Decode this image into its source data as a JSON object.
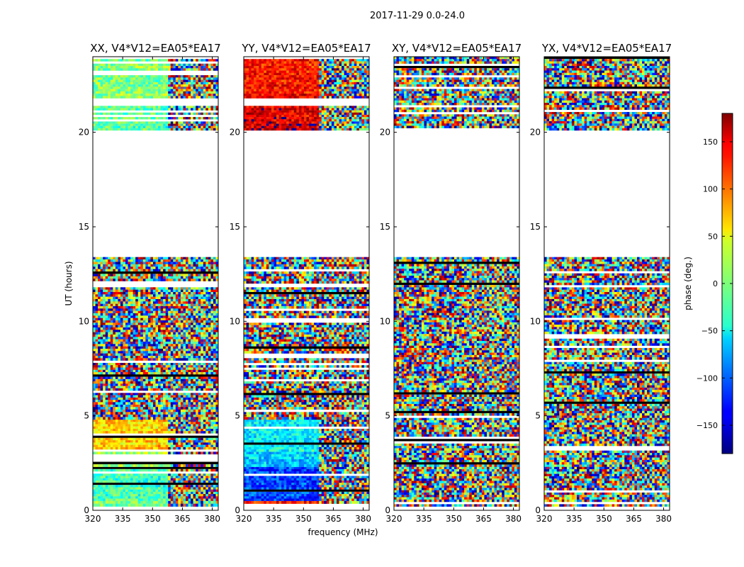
{
  "figure": {
    "suptitle": "2017-11-29 0.0-24.0",
    "xlabel": "frequency (MHz)",
    "ylabel": "UT (hours)"
  },
  "colorbar": {
    "label": "phase (deg.)",
    "range": [
      -180,
      180
    ],
    "ticks": [
      150,
      100,
      50,
      0,
      -50,
      -100,
      -150
    ],
    "tick_labels": [
      "150",
      "100",
      "50",
      "0",
      "−50",
      "−100",
      "−150"
    ],
    "colormap": "jet"
  },
  "chart_data": [
    {
      "type": "heatmap",
      "title": "XX, V4*V12=EA05*EA17",
      "xlim": [
        320,
        383
      ],
      "ylim": [
        0,
        24
      ],
      "xticks": [
        320,
        335,
        350,
        365,
        380
      ],
      "xtick_labels": [
        "320",
        "335",
        "350",
        "365",
        "380"
      ],
      "yticks": [
        0,
        5,
        10,
        15,
        20
      ],
      "ytick_labels": [
        "0",
        "5",
        "10",
        "15",
        "20"
      ],
      "show_ylabel": true,
      "data_segments": [
        {
          "t": [
            0.2,
            0.5
          ],
          "phase": 0
        },
        {
          "t": [
            0.5,
            2.3
          ],
          "phase": -20
        },
        {
          "t": [
            2.3,
            3.1
          ],
          "phase": 10
        },
        {
          "t": [
            3.1,
            4.8
          ],
          "phase": 60
        },
        {
          "t": [
            4.8,
            5.6
          ],
          "phase": "mixed"
        },
        {
          "t": [
            5.6,
            7.8
          ],
          "phase": "mixed"
        },
        {
          "t": [
            7.8,
            11.8
          ],
          "phase": "mixed"
        },
        {
          "t": [
            12.0,
            13.4
          ],
          "phase": "mixed"
        },
        {
          "t": [
            20.1,
            21.4
          ],
          "phase": -10
        },
        {
          "t": [
            21.8,
            24.0
          ],
          "phase": 0
        }
      ]
    },
    {
      "type": "heatmap",
      "title": "YY, V4*V12=EA05*EA17",
      "xlim": [
        320,
        383
      ],
      "ylim": [
        0,
        24
      ],
      "xticks": [
        320,
        335,
        350,
        365,
        380
      ],
      "xtick_labels": [
        "320",
        "335",
        "350",
        "365",
        "380"
      ],
      "yticks": [
        0,
        5,
        10,
        15,
        20
      ],
      "ytick_labels": [
        "0",
        "5",
        "10",
        "15",
        "20"
      ],
      "show_ylabel": false,
      "data_segments": [
        {
          "t": [
            0.2,
            0.5
          ],
          "phase": 120
        },
        {
          "t": [
            0.5,
            2.3
          ],
          "phase": -110
        },
        {
          "t": [
            2.3,
            3.1
          ],
          "phase": -60
        },
        {
          "t": [
            3.1,
            4.8
          ],
          "phase": -50
        },
        {
          "t": [
            4.8,
            5.6
          ],
          "phase": "mixed"
        },
        {
          "t": [
            5.6,
            7.8
          ],
          "phase": "mixed"
        },
        {
          "t": [
            7.8,
            11.8
          ],
          "phase": "mixed"
        },
        {
          "t": [
            12.0,
            13.4
          ],
          "phase": "mixed"
        },
        {
          "t": [
            20.1,
            21.4
          ],
          "phase": 150
        },
        {
          "t": [
            21.8,
            24.0
          ],
          "phase": 130
        }
      ]
    },
    {
      "type": "heatmap",
      "title": "XY, V4*V12=EA05*EA17",
      "xlim": [
        320,
        383
      ],
      "ylim": [
        0,
        24
      ],
      "xticks": [
        320,
        335,
        350,
        365,
        380
      ],
      "xtick_labels": [
        "320",
        "335",
        "350",
        "365",
        "380"
      ],
      "yticks": [
        0,
        5,
        10,
        15,
        20
      ],
      "ytick_labels": [
        "0",
        "5",
        "10",
        "15",
        "20"
      ],
      "show_ylabel": false,
      "data_segments": [
        {
          "t": [
            0.2,
            13.4
          ],
          "phase": "mixed"
        },
        {
          "t": [
            20.1,
            24.0
          ],
          "phase": "mixed"
        }
      ]
    },
    {
      "type": "heatmap",
      "title": "YX, V4*V12=EA05*EA17",
      "xlim": [
        320,
        383
      ],
      "ylim": [
        0,
        24
      ],
      "xticks": [
        320,
        335,
        350,
        365,
        380
      ],
      "xtick_labels": [
        "320",
        "335",
        "350",
        "365",
        "380"
      ],
      "yticks": [
        0,
        5,
        10,
        15,
        20
      ],
      "ytick_labels": [
        "0",
        "5",
        "10",
        "15",
        "20"
      ],
      "show_ylabel": false,
      "data_segments": [
        {
          "t": [
            0.2,
            13.4
          ],
          "phase": "mixed"
        },
        {
          "t": [
            20.1,
            24.0
          ],
          "phase": "mixed"
        }
      ]
    }
  ]
}
